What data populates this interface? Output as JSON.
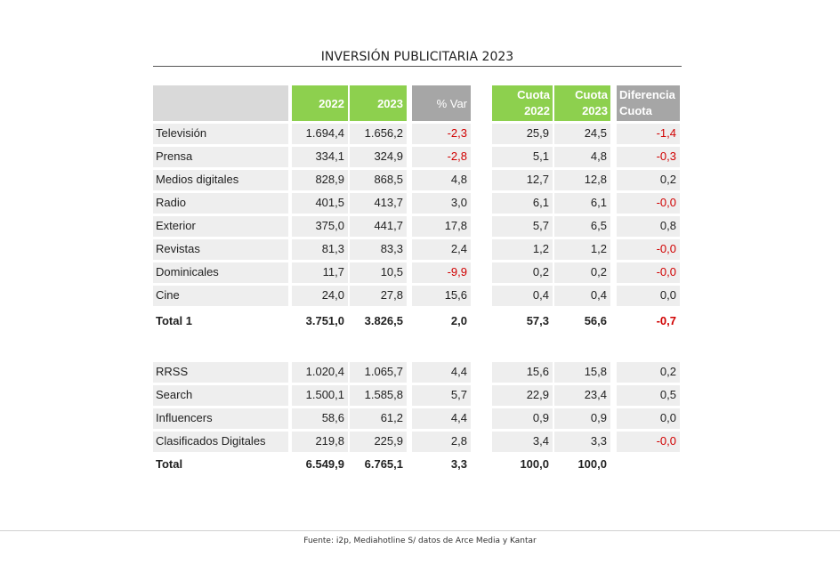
{
  "title": "INVERSIÓN PUBLICITARIA 2023",
  "headers": {
    "y2022": "2022",
    "y2023": "2023",
    "var": "% Var",
    "cuota2022_l1": "Cuota",
    "cuota2022_l2": "2022",
    "cuota2023_l1": "Cuota",
    "cuota2023_l2": "2023",
    "dif_l1": "Diferencia",
    "dif_l2": "Cuota"
  },
  "rows1": [
    {
      "label": "Televisión",
      "y2022": "1.694,4",
      "y2023": "1.656,2",
      "var": "-2,3",
      "c22": "25,9",
      "c23": "24,5",
      "dif": "-1,4"
    },
    {
      "label": "Prensa",
      "y2022": "334,1",
      "y2023": "324,9",
      "var": "-2,8",
      "c22": "5,1",
      "c23": "4,8",
      "dif": "-0,3"
    },
    {
      "label": "Medios digitales",
      "y2022": "828,9",
      "y2023": "868,5",
      "var": "4,8",
      "c22": "12,7",
      "c23": "12,8",
      "dif": "0,2"
    },
    {
      "label": "Radio",
      "y2022": "401,5",
      "y2023": "413,7",
      "var": "3,0",
      "c22": "6,1",
      "c23": "6,1",
      "dif": "-0,0"
    },
    {
      "label": "Exterior",
      "y2022": "375,0",
      "y2023": "441,7",
      "var": "17,8",
      "c22": "5,7",
      "c23": "6,5",
      "dif": "0,8"
    },
    {
      "label": "Revistas",
      "y2022": "81,3",
      "y2023": "83,3",
      "var": "2,4",
      "c22": "1,2",
      "c23": "1,2",
      "dif": "-0,0"
    },
    {
      "label": "Dominicales",
      "y2022": "11,7",
      "y2023": "10,5",
      "var": "-9,9",
      "c22": "0,2",
      "c23": "0,2",
      "dif": "-0,0"
    },
    {
      "label": "Cine",
      "y2022": "24,0",
      "y2023": "27,8",
      "var": "15,6",
      "c22": "0,4",
      "c23": "0,4",
      "dif": "0,0"
    }
  ],
  "total1": {
    "label": "Total 1",
    "y2022": "3.751,0",
    "y2023": "3.826,5",
    "var": "2,0",
    "c22": "57,3",
    "c23": "56,6",
    "dif": "-0,7"
  },
  "rows2": [
    {
      "label": "RRSS",
      "y2022": "1.020,4",
      "y2023": "1.065,7",
      "var": "4,4",
      "c22": "15,6",
      "c23": "15,8",
      "dif": "0,2"
    },
    {
      "label": "Search",
      "y2022": "1.500,1",
      "y2023": "1.585,8",
      "var": "5,7",
      "c22": "22,9",
      "c23": "23,4",
      "dif": "0,5"
    },
    {
      "label": "Influencers",
      "y2022": "58,6",
      "y2023": "61,2",
      "var": "4,4",
      "c22": "0,9",
      "c23": "0,9",
      "dif": "0,0"
    },
    {
      "label": "Clasificados Digitales",
      "y2022": "219,8",
      "y2023": "225,9",
      "var": "2,8",
      "c22": "3,4",
      "c23": "3,3",
      "dif": "-0,0"
    }
  ],
  "total": {
    "label": "Total",
    "y2022": "6.549,9",
    "y2023": "6.765,1",
    "var": "3,3",
    "c22": "100,0",
    "c23": "100,0",
    "dif": ""
  },
  "footer": "Fuente: i2p, Mediahotline  S/ datos de Arce Media y Kantar",
  "colors": {
    "header_green": "#8dd04e",
    "header_grey": "#a6a6a6",
    "negative": "#d00000",
    "row_bg": "#eeeeee"
  }
}
